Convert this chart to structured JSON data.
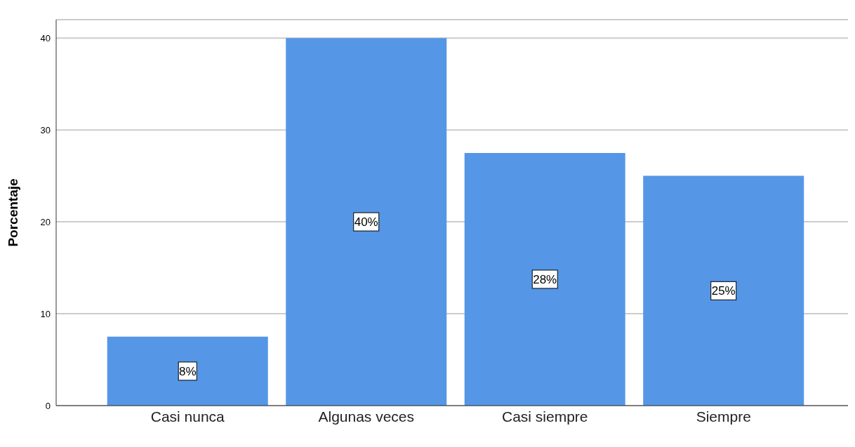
{
  "chart_data": {
    "type": "bar",
    "ylabel": "Porcentaje",
    "categories": [
      "Casi nunca",
      "Algunas veces",
      "Casi siempre",
      "Siempre"
    ],
    "values": [
      7.5,
      40,
      27.5,
      25
    ],
    "value_labels": [
      "8%",
      "40%",
      "28%",
      "25%"
    ],
    "color": "#5596e6",
    "ylim": [
      0,
      42
    ],
    "yticks": [
      0,
      10,
      20,
      30,
      40
    ],
    "grid": "y"
  }
}
